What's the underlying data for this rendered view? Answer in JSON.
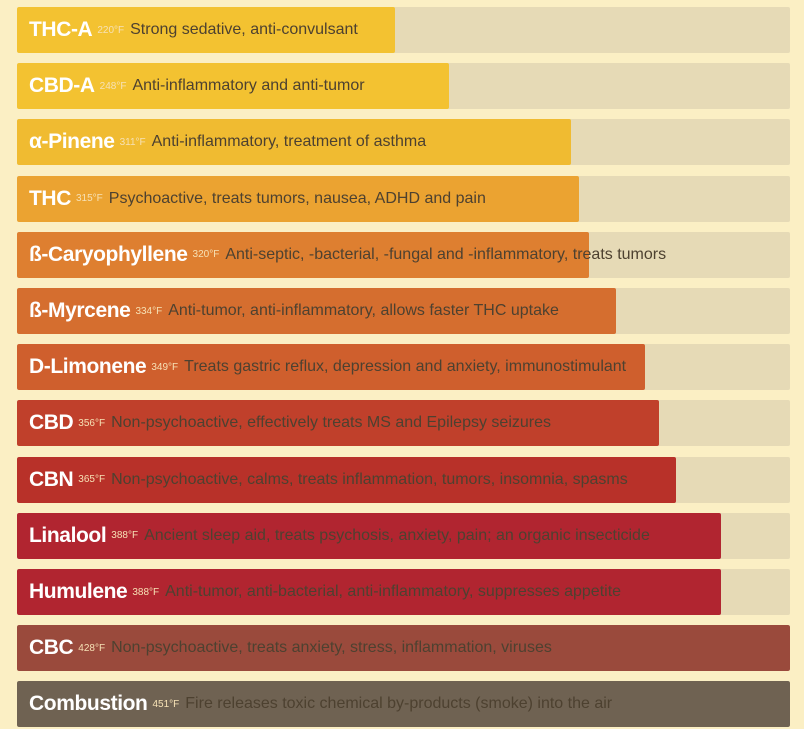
{
  "chart_data": {
    "type": "bar",
    "orientation": "horizontal",
    "xlim": [
      0,
      451
    ],
    "categories": [
      "THC-A",
      "CBD-A",
      "α-Pinene",
      "THC",
      "ß-Caryophyllene",
      "ß-Myrcene",
      "D-Limonene",
      "CBD",
      "CBN",
      "Linalool",
      "Humulene",
      "CBC",
      "Combustion"
    ],
    "temps": [
      "220°F",
      "248°F",
      "311°F",
      "315°F",
      "320°F",
      "334°F",
      "349°F",
      "356°F",
      "365°F",
      "388°F",
      "388°F",
      "428°F",
      "451°F"
    ],
    "values": [
      220,
      248,
      311,
      315,
      320,
      334,
      349,
      356,
      365,
      388,
      388,
      428,
      451
    ],
    "descriptions": [
      "Strong sedative, anti-convulsant",
      "Anti-inflammatory and anti-tumor",
      "Anti-inflammatory, treatment of asthma",
      "Psychoactive, treats tumors, nausea, ADHD and pain",
      "Anti-septic, -bacterial, -fungal and -inflammatory, treats tumors",
      "Anti-tumor, anti-inflammatory, allows faster THC uptake",
      "Treats gastric reflux, depression and anxiety, immunostimulant",
      "Non-psychoactive, effectively treats MS and Epilepsy seizures",
      "Non-psychoactive, calms, treats inflammation, tumors, insomnia, spasms",
      "Ancient sleep aid, treats psychosis, anxiety, pain; an organic insecticide",
      "Anti-tumor, anti-bacterial, anti-inflammatory, suppresses appetite",
      "Non-psychoactive, treats anxiety, stress, inflammation, viruses",
      "Fire releases toxic chemical by-products (smoke) into the air"
    ],
    "colors": [
      "#f3c231",
      "#f3c231",
      "#f0bb31",
      "#eba331",
      "#de7f30",
      "#d56e2f",
      "#cf5f2d",
      "#c0402b",
      "#b83129",
      "#b12530",
      "#b12530",
      "#9a4a3c",
      "#6f6252"
    ],
    "track_color": "#e6dab6",
    "grid": false
  }
}
